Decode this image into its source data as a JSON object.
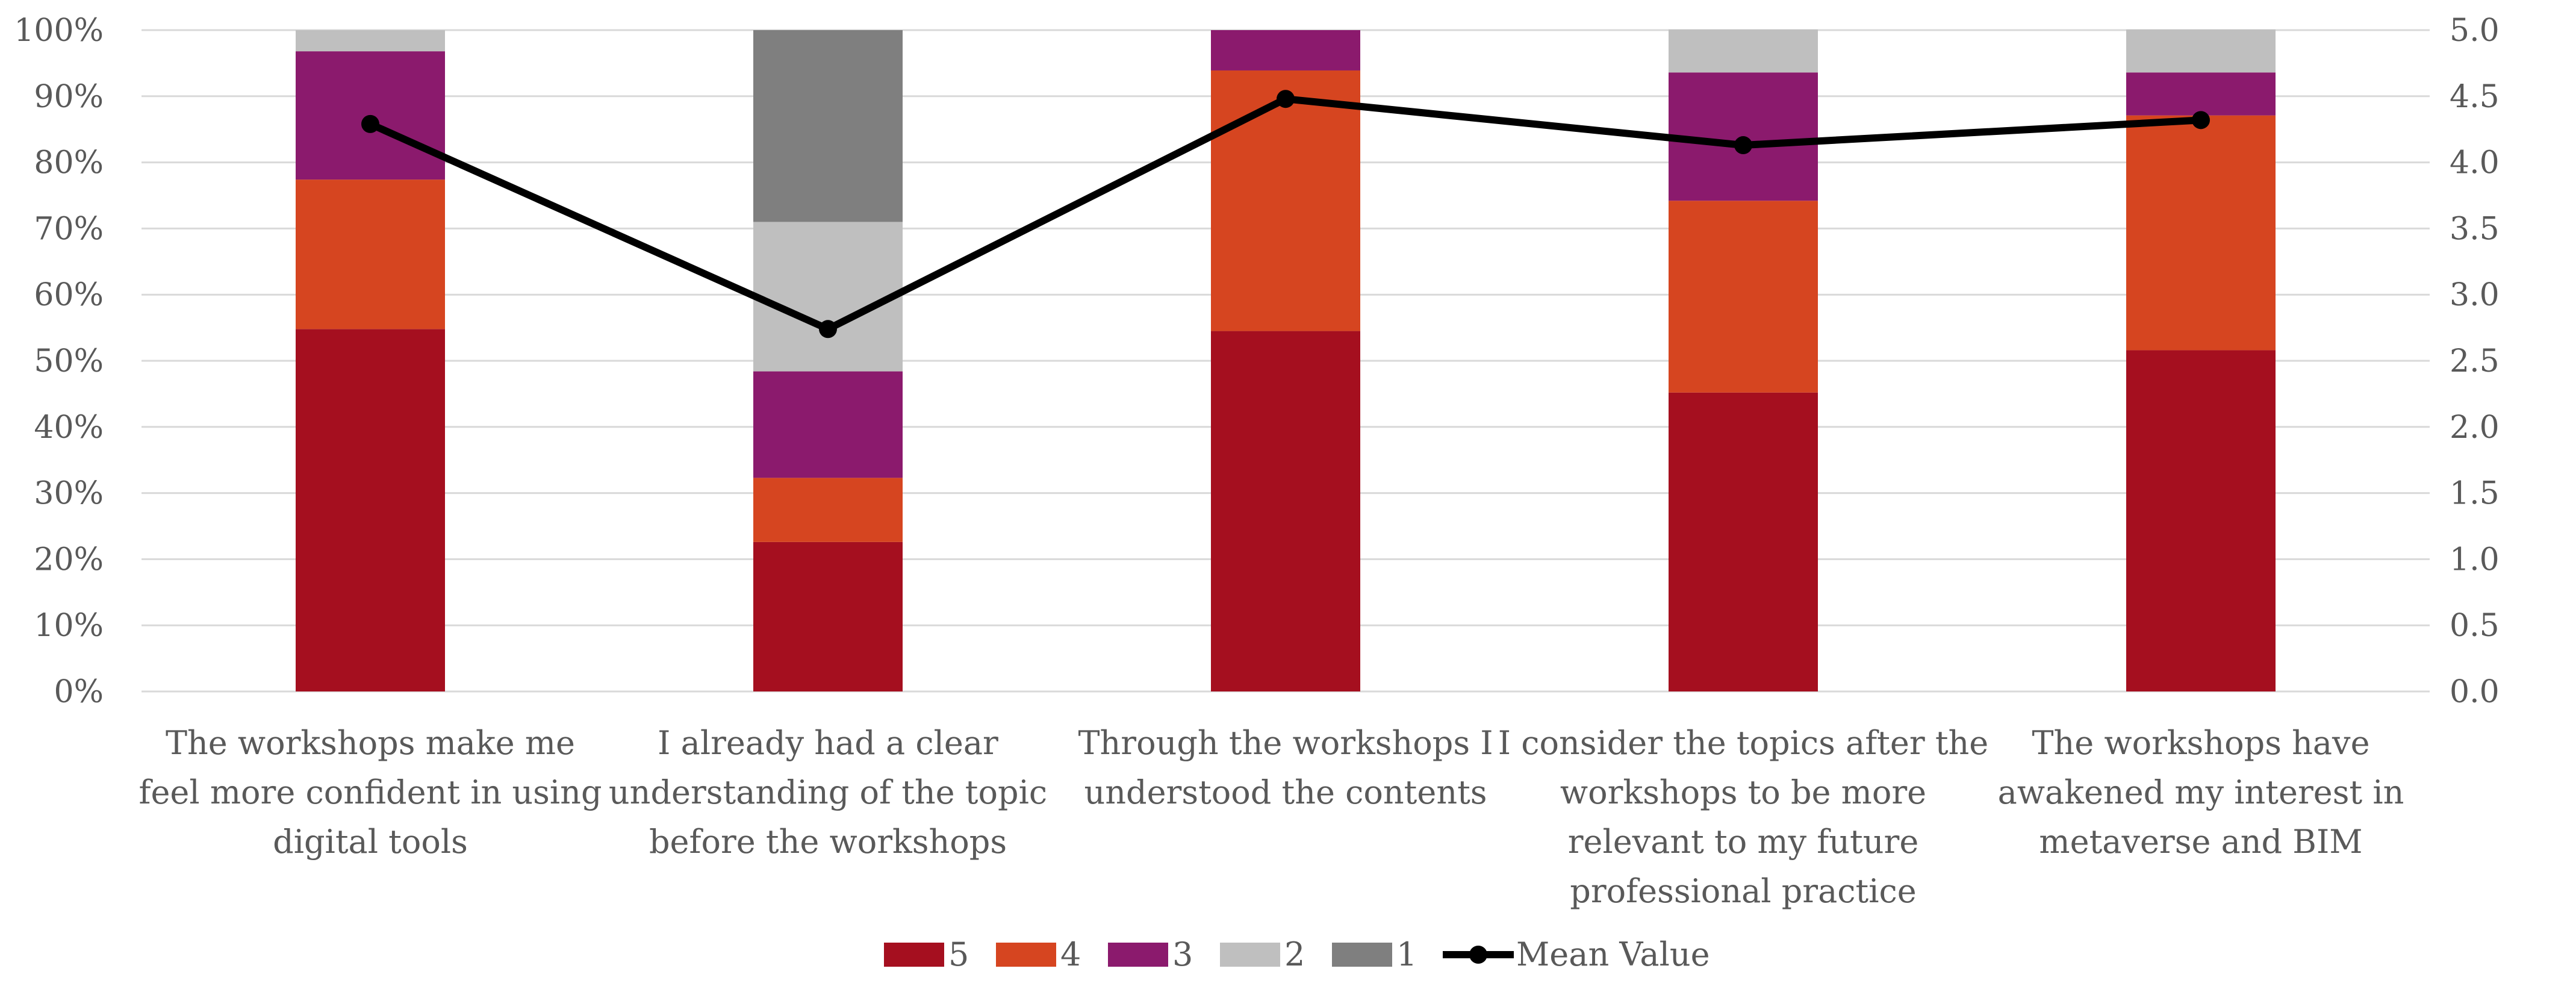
{
  "chart_data": {
    "type": "bar",
    "stacked": true,
    "percent_stacked": true,
    "categories": [
      [
        "The workshops make me",
        "feel more confident in using",
        "digital tools"
      ],
      [
        "I already had a clear",
        "understanding of the topic",
        "before the workshops"
      ],
      [
        "Through the workshops I",
        "understood the contents"
      ],
      [
        "I consider the topics after the",
        "workshops to be more",
        "relevant to my future",
        "professional practice"
      ],
      [
        "The workshops have",
        "awakened my interest in",
        "metaverse and BIM"
      ]
    ],
    "series": [
      {
        "name": "5",
        "color": "#A50F1F",
        "values": [
          54.8,
          22.6,
          54.5,
          45.2,
          51.6
        ]
      },
      {
        "name": "4",
        "color": "#D64520",
        "values": [
          22.6,
          9.7,
          39.4,
          29.0,
          35.5
        ]
      },
      {
        "name": "3",
        "color": "#8B1A6D",
        "values": [
          19.4,
          16.1,
          6.1,
          19.4,
          6.5
        ]
      },
      {
        "name": "2",
        "color": "#BFBFBF",
        "values": [
          3.2,
          22.6,
          0,
          6.5,
          6.5
        ]
      },
      {
        "name": "1",
        "color": "#7F7F7F",
        "values": [
          0,
          29.0,
          0,
          0,
          0
        ]
      }
    ],
    "line_series": {
      "name": "Mean Value",
      "color": "#000000",
      "values": [
        4.29,
        2.74,
        4.48,
        4.13,
        4.32
      ]
    },
    "y_left": {
      "ylim": [
        0,
        100
      ],
      "ticks": [
        "0%",
        "10%",
        "20%",
        "30%",
        "40%",
        "50%",
        "60%",
        "70%",
        "80%",
        "90%",
        "100%"
      ]
    },
    "y_right": {
      "ylim": [
        0,
        5
      ],
      "ticks": [
        "0.0",
        "0.5",
        "1.0",
        "1.5",
        "2.0",
        "2.5",
        "3.0",
        "3.5",
        "4.0",
        "4.5",
        "5.0"
      ]
    },
    "grid": true,
    "legend": {
      "position": "bottom",
      "entries": [
        "5",
        "4",
        "3",
        "2",
        "1",
        "Mean Value"
      ]
    },
    "title": "",
    "xlabel": "",
    "ylabel": ""
  }
}
